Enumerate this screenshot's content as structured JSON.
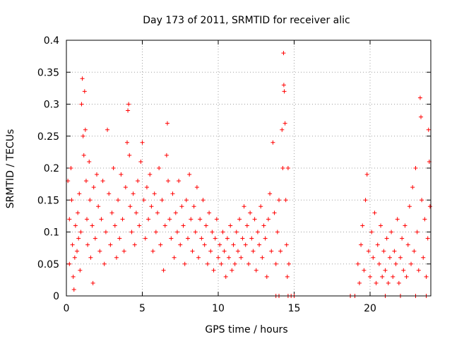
{
  "chart_data": {
    "type": "scatter",
    "title": "Day 173 of 2011, SRMTID for receiver alic",
    "xlabel": "GPS time / hours",
    "ylabel": "SRMTID / TECUs",
    "xlim": [
      0,
      24
    ],
    "ylim": [
      0,
      0.4
    ],
    "x_ticks": [
      0,
      5,
      10,
      15,
      20
    ],
    "x_tick_labels": [
      "0",
      "5",
      "10",
      "15",
      "20"
    ],
    "y_ticks": [
      0,
      0.05,
      0.1,
      0.15,
      0.2,
      0.25,
      0.3,
      0.35,
      0.4
    ],
    "y_tick_labels": [
      "0",
      "0.05",
      "0.1",
      "0.15",
      "0.2",
      "0.25",
      "0.3",
      "0.35",
      "0.4"
    ],
    "grid": true,
    "marker": "+",
    "color": "#ff0000",
    "series": [
      {
        "name": "SRMTID",
        "points": [
          [
            0.1,
            0.18
          ],
          [
            0.2,
            0.12
          ],
          [
            0.2,
            0.05
          ],
          [
            0.3,
            0.2
          ],
          [
            0.35,
            0.15
          ],
          [
            0.4,
            0.08
          ],
          [
            0.45,
            0.03
          ],
          [
            0.5,
            0.01
          ],
          [
            0.55,
            0.06
          ],
          [
            0.6,
            0.11
          ],
          [
            0.7,
            0.07
          ],
          [
            0.75,
            0.13
          ],
          [
            0.8,
            0.09
          ],
          [
            0.85,
            0.16
          ],
          [
            0.9,
            0.04
          ],
          [
            0.95,
            0.1
          ],
          [
            1.0,
            0.3
          ],
          [
            1.05,
            0.34
          ],
          [
            1.1,
            0.25
          ],
          [
            1.15,
            0.22
          ],
          [
            1.2,
            0.32
          ],
          [
            1.25,
            0.26
          ],
          [
            1.3,
            0.18
          ],
          [
            1.35,
            0.12
          ],
          [
            1.4,
            0.08
          ],
          [
            1.5,
            0.21
          ],
          [
            1.55,
            0.15
          ],
          [
            1.6,
            0.06
          ],
          [
            1.7,
            0.11
          ],
          [
            1.75,
            0.02
          ],
          [
            1.8,
            0.17
          ],
          [
            1.9,
            0.09
          ],
          [
            2.0,
            0.19
          ],
          [
            2.1,
            0.14
          ],
          [
            2.2,
            0.07
          ],
          [
            2.3,
            0.12
          ],
          [
            2.4,
            0.18
          ],
          [
            2.5,
            0.05
          ],
          [
            2.6,
            0.1
          ],
          [
            2.7,
            0.26
          ],
          [
            2.8,
            0.16
          ],
          [
            2.9,
            0.08
          ],
          [
            3.0,
            0.13
          ],
          [
            3.1,
            0.2
          ],
          [
            3.2,
            0.11
          ],
          [
            3.3,
            0.06
          ],
          [
            3.4,
            0.15
          ],
          [
            3.5,
            0.09
          ],
          [
            3.6,
            0.19
          ],
          [
            3.7,
            0.12
          ],
          [
            3.8,
            0.07
          ],
          [
            3.9,
            0.17
          ],
          [
            4.0,
            0.24
          ],
          [
            4.05,
            0.29
          ],
          [
            4.1,
            0.3
          ],
          [
            4.15,
            0.22
          ],
          [
            4.2,
            0.14
          ],
          [
            4.3,
            0.1
          ],
          [
            4.4,
            0.16
          ],
          [
            4.5,
            0.08
          ],
          [
            4.6,
            0.13
          ],
          [
            4.7,
            0.18
          ],
          [
            4.8,
            0.11
          ],
          [
            4.9,
            0.21
          ],
          [
            5.0,
            0.24
          ],
          [
            5.1,
            0.15
          ],
          [
            5.2,
            0.09
          ],
          [
            5.3,
            0.17
          ],
          [
            5.4,
            0.12
          ],
          [
            5.5,
            0.19
          ],
          [
            5.6,
            0.14
          ],
          [
            5.7,
            0.07
          ],
          [
            5.8,
            0.16
          ],
          [
            5.9,
            0.1
          ],
          [
            6.0,
            0.13
          ],
          [
            6.1,
            0.2
          ],
          [
            6.2,
            0.08
          ],
          [
            6.3,
            0.15
          ],
          [
            6.4,
            0.04
          ],
          [
            6.5,
            0.11
          ],
          [
            6.6,
            0.22
          ],
          [
            6.65,
            0.27
          ],
          [
            6.7,
            0.18
          ],
          [
            6.8,
            0.12
          ],
          [
            6.9,
            0.09
          ],
          [
            7.0,
            0.16
          ],
          [
            7.1,
            0.06
          ],
          [
            7.2,
            0.13
          ],
          [
            7.3,
            0.1
          ],
          [
            7.4,
            0.18
          ],
          [
            7.5,
            0.08
          ],
          [
            7.6,
            0.14
          ],
          [
            7.7,
            0.11
          ],
          [
            7.8,
            0.05
          ],
          [
            7.9,
            0.15
          ],
          [
            8.0,
            0.09
          ],
          [
            8.1,
            0.19
          ],
          [
            8.2,
            0.12
          ],
          [
            8.3,
            0.07
          ],
          [
            8.4,
            0.14
          ],
          [
            8.5,
            0.1
          ],
          [
            8.6,
            0.17
          ],
          [
            8.7,
            0.06
          ],
          [
            8.8,
            0.12
          ],
          [
            8.9,
            0.09
          ],
          [
            9.0,
            0.15
          ],
          [
            9.1,
            0.08
          ],
          [
            9.2,
            0.11
          ],
          [
            9.3,
            0.05
          ],
          [
            9.4,
            0.13
          ],
          [
            9.5,
            0.07
          ],
          [
            9.6,
            0.1
          ],
          [
            9.7,
            0.04
          ],
          [
            9.8,
            0.09
          ],
          [
            9.9,
            0.12
          ],
          [
            10.0,
            0.06
          ],
          [
            10.1,
            0.08
          ],
          [
            10.2,
            0.05
          ],
          [
            10.3,
            0.1
          ],
          [
            10.4,
            0.07
          ],
          [
            10.5,
            0.03
          ],
          [
            10.6,
            0.09
          ],
          [
            10.7,
            0.06
          ],
          [
            10.8,
            0.11
          ],
          [
            10.9,
            0.04
          ],
          [
            11.0,
            0.08
          ],
          [
            11.1,
            0.05
          ],
          [
            11.2,
            0.1
          ],
          [
            11.3,
            0.07
          ],
          [
            11.4,
            0.12
          ],
          [
            11.5,
            0.06
          ],
          [
            11.6,
            0.09
          ],
          [
            11.7,
            0.14
          ],
          [
            11.8,
            0.08
          ],
          [
            11.9,
            0.11
          ],
          [
            12.0,
            0.05
          ],
          [
            12.1,
            0.13
          ],
          [
            12.2,
            0.09
          ],
          [
            12.3,
            0.07
          ],
          [
            12.4,
            0.12
          ],
          [
            12.5,
            0.04
          ],
          [
            12.6,
            0.1
          ],
          [
            12.7,
            0.08
          ],
          [
            12.8,
            0.14
          ],
          [
            12.9,
            0.06
          ],
          [
            13.0,
            0.11
          ],
          [
            13.1,
            0.09
          ],
          [
            13.2,
            0.03
          ],
          [
            13.3,
            0.12
          ],
          [
            13.4,
            0.16
          ],
          [
            13.5,
            0.07
          ],
          [
            13.6,
            0.24
          ],
          [
            13.7,
            0.13
          ],
          [
            13.8,
            0.05
          ],
          [
            13.9,
            0.1
          ],
          [
            14.0,
            0.15
          ],
          [
            14.1,
            0.07
          ],
          [
            14.2,
            0.26
          ],
          [
            14.25,
            0.2
          ],
          [
            14.3,
            0.38
          ],
          [
            14.32,
            0.33
          ],
          [
            14.35,
            0.32
          ],
          [
            14.4,
            0.27
          ],
          [
            14.45,
            0.15
          ],
          [
            14.5,
            0.08
          ],
          [
            14.55,
            0.03
          ],
          [
            14.6,
            0.2
          ],
          [
            14.65,
            0.05
          ],
          [
            13.8,
            0.0
          ],
          [
            14.0,
            0.0
          ],
          [
            14.6,
            0.0
          ],
          [
            14.8,
            0.0
          ],
          [
            15.0,
            0.0
          ],
          [
            18.7,
            0.0
          ],
          [
            19.0,
            0.0
          ],
          [
            19.2,
            0.05
          ],
          [
            19.3,
            0.02
          ],
          [
            19.4,
            0.08
          ],
          [
            19.5,
            0.11
          ],
          [
            19.6,
            0.04
          ],
          [
            19.7,
            0.15
          ],
          [
            19.8,
            0.19
          ],
          [
            19.9,
            0.07
          ],
          [
            20.0,
            0.03
          ],
          [
            20.1,
            0.1
          ],
          [
            20.2,
            0.06
          ],
          [
            20.3,
            0.13
          ],
          [
            20.4,
            0.02
          ],
          [
            20.5,
            0.08
          ],
          [
            20.6,
            0.05
          ],
          [
            20.7,
            0.11
          ],
          [
            20.8,
            0.03
          ],
          [
            20.9,
            0.07
          ],
          [
            21.0,
            0.04
          ],
          [
            21.1,
            0.09
          ],
          [
            21.2,
            0.02
          ],
          [
            21.3,
            0.06
          ],
          [
            21.4,
            0.1
          ],
          [
            21.5,
            0.03
          ],
          [
            21.6,
            0.07
          ],
          [
            21.7,
            0.05
          ],
          [
            21.8,
            0.12
          ],
          [
            21.9,
            0.02
          ],
          [
            22.0,
            0.06
          ],
          [
            22.1,
            0.09
          ],
          [
            22.2,
            0.04
          ],
          [
            22.3,
            0.11
          ],
          [
            22.4,
            0.03
          ],
          [
            22.5,
            0.08
          ],
          [
            22.6,
            0.14
          ],
          [
            22.7,
            0.05
          ],
          [
            22.8,
            0.17
          ],
          [
            22.9,
            0.07
          ],
          [
            23.0,
            0.2
          ],
          [
            23.1,
            0.1
          ],
          [
            23.2,
            0.04
          ],
          [
            23.3,
            0.31
          ],
          [
            23.35,
            0.28
          ],
          [
            23.4,
            0.15
          ],
          [
            23.5,
            0.06
          ],
          [
            23.6,
            0.12
          ],
          [
            23.7,
            0.03
          ],
          [
            23.8,
            0.09
          ],
          [
            23.85,
            0.26
          ],
          [
            23.9,
            0.21
          ],
          [
            23.95,
            0.14
          ],
          [
            21.0,
            0.0
          ],
          [
            22.0,
            0.0
          ],
          [
            23.0,
            0.0
          ],
          [
            23.7,
            0.0
          ]
        ]
      }
    ]
  }
}
